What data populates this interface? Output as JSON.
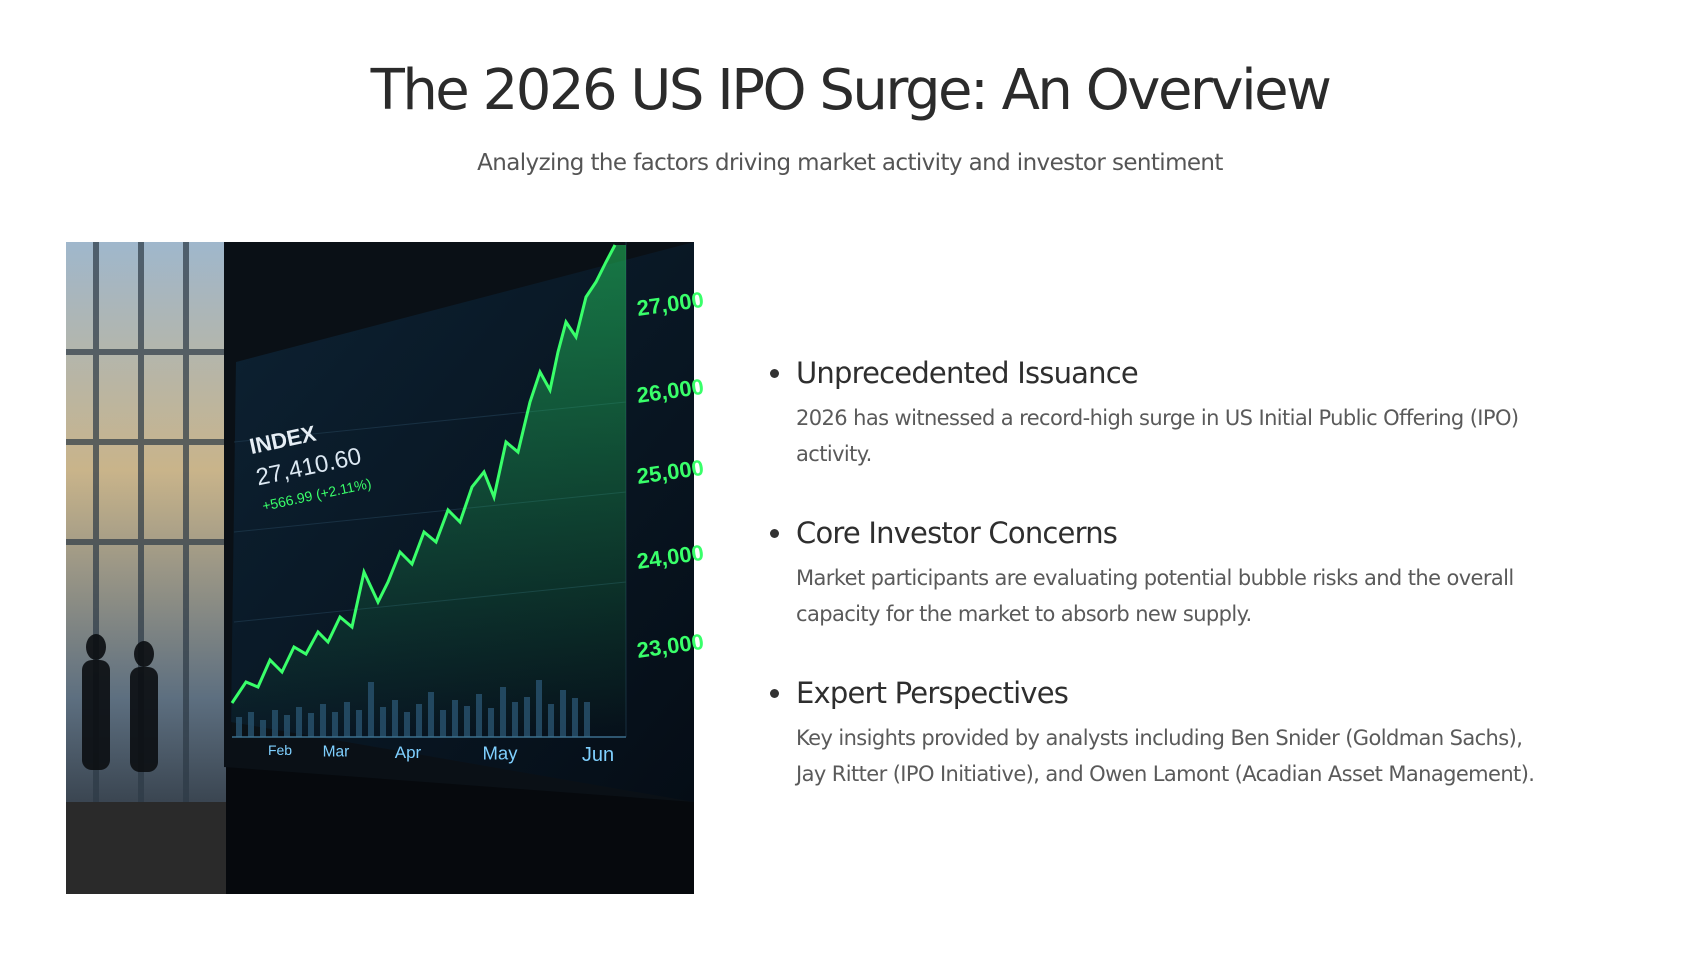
{
  "header": {
    "title": "The 2026 US IPO Surge: An Overview",
    "subtitle": "Analyzing the factors driving market activity and investor sentiment"
  },
  "image": {
    "index_label": "INDEX",
    "index_value": "27,410.60",
    "index_change": "+566.99 (+2.11%)",
    "axis_labels": [
      "27,000",
      "26,000",
      "25,000",
      "24,000",
      "23,000"
    ],
    "month_labels": [
      "Feb",
      "Mar",
      "Apr",
      "May",
      "Jun"
    ]
  },
  "bullets": [
    {
      "heading": "Unprecedented Issuance",
      "text": "2026 has witnessed a record-high surge in US Initial Public Offering (IPO) activity."
    },
    {
      "heading": "Core Investor Concerns",
      "text": "Market participants are evaluating potential bubble risks and the overall capacity for the market to absorb new supply."
    },
    {
      "heading": "Expert Perspectives",
      "text": "Key insights provided by analysts including Ben Snider (Goldman Sachs), Jay Ritter (IPO Initiative), and Owen Lamont (Acadian Asset Management)."
    }
  ]
}
